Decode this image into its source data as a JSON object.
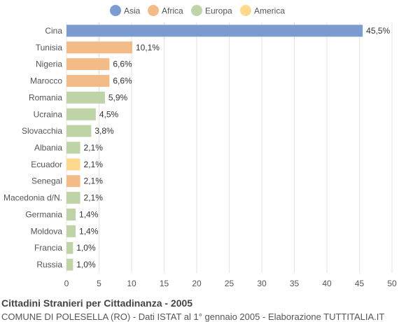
{
  "chart_data": {
    "type": "bar",
    "orientation": "horizontal",
    "title": "Cittadini Stranieri per Cittadinanza - 2005",
    "subtitle": "COMUNE DI POLESELLA (RO) - Dati ISTAT al 1° gennaio 2005 - Elaborazione TUTTITALIA.IT",
    "legend": {
      "placement": "top",
      "entries": [
        {
          "name": "Asia",
          "color": "#7b9bd1"
        },
        {
          "name": "Africa",
          "color": "#f2bb88"
        },
        {
          "name": "Europa",
          "color": "#bfd4a6"
        },
        {
          "name": "America",
          "color": "#fdd98e"
        }
      ]
    },
    "categories": [
      "Cina",
      "Tunisia",
      "Nigeria",
      "Marocco",
      "Romania",
      "Ucraina",
      "Slovacchia",
      "Albania",
      "Ecuador",
      "Senegal",
      "Macedonia d/N.",
      "Germania",
      "Moldova",
      "Francia",
      "Russia"
    ],
    "values": [
      45.5,
      10.1,
      6.6,
      6.6,
      5.9,
      4.5,
      3.8,
      2.1,
      2.1,
      2.1,
      2.1,
      1.4,
      1.4,
      1.0,
      1.0
    ],
    "value_labels": [
      "45,5%",
      "10,1%",
      "6,6%",
      "6,6%",
      "5,9%",
      "4,5%",
      "3,8%",
      "2,1%",
      "2,1%",
      "2,1%",
      "2,1%",
      "1,4%",
      "1,4%",
      "1,0%",
      "1,0%"
    ],
    "groups": [
      "Asia",
      "Africa",
      "Africa",
      "Africa",
      "Europa",
      "Europa",
      "Europa",
      "Europa",
      "America",
      "Africa",
      "Europa",
      "Europa",
      "Europa",
      "Europa",
      "Europa"
    ],
    "xlim": [
      0,
      50
    ],
    "xticks": [
      0,
      5,
      10,
      15,
      20,
      25,
      30,
      35,
      40,
      45,
      50
    ],
    "grid": true
  }
}
